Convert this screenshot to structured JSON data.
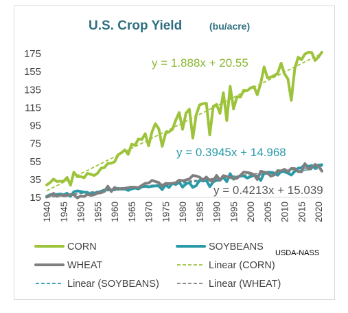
{
  "chart_data": {
    "type": "line",
    "title": "U.S. Crop Yield",
    "subtitle": "(bu/acre)",
    "ylim": [
      15,
      185
    ],
    "yticks": [
      15,
      35,
      55,
      75,
      95,
      115,
      135,
      155,
      175
    ],
    "xticks": [
      1940,
      1945,
      1950,
      1955,
      1960,
      1965,
      1970,
      1975,
      1980,
      1985,
      1990,
      1995,
      2000,
      2005,
      2010,
      2015,
      2020
    ],
    "x": [
      1940,
      1941,
      1942,
      1943,
      1944,
      1945,
      1946,
      1947,
      1948,
      1949,
      1950,
      1951,
      1952,
      1953,
      1954,
      1955,
      1956,
      1957,
      1958,
      1959,
      1960,
      1961,
      1962,
      1963,
      1964,
      1965,
      1966,
      1967,
      1968,
      1969,
      1970,
      1971,
      1972,
      1973,
      1974,
      1975,
      1976,
      1977,
      1978,
      1979,
      1980,
      1981,
      1982,
      1983,
      1984,
      1985,
      1986,
      1987,
      1988,
      1989,
      1990,
      1991,
      1992,
      1993,
      1994,
      1995,
      1996,
      1997,
      1998,
      1999,
      2000,
      2001,
      2002,
      2003,
      2004,
      2005,
      2006,
      2007,
      2008,
      2009,
      2010,
      2011,
      2012,
      2013,
      2014,
      2015,
      2016,
      2017,
      2018,
      2019,
      2020,
      2021
    ],
    "series": [
      {
        "name": "CORN",
        "color": "#9dc33b",
        "values": [
          28.9,
          31.5,
          35.4,
          32.8,
          33.0,
          33.1,
          37.2,
          28.6,
          43.0,
          38.2,
          38.2,
          36.9,
          41.8,
          40.7,
          39.4,
          42.0,
          47.4,
          48.3,
          52.8,
          53.1,
          54.7,
          62.4,
          64.7,
          67.9,
          62.9,
          74.1,
          73.1,
          80.1,
          79.5,
          85.9,
          72.4,
          88.1,
          97.0,
          91.3,
          71.9,
          86.4,
          88.0,
          90.8,
          101.0,
          109.5,
          91.0,
          108.9,
          113.2,
          81.1,
          106.7,
          118.0,
          119.4,
          119.8,
          84.6,
          116.3,
          118.5,
          108.6,
          131.5,
          100.7,
          138.6,
          113.5,
          127.1,
          126.7,
          134.4,
          133.8,
          136.9,
          138.2,
          129.3,
          142.2,
          160.3,
          147.9,
          149.1,
          150.7,
          153.3,
          164.4,
          152.6,
          146.8,
          123.1,
          158.1,
          171.0,
          168.4,
          174.6,
          176.6,
          176.4,
          167.5,
          171.4,
          176.7
        ]
      },
      {
        "name": "SOYBEANS",
        "color": "#2a9aa8",
        "values": [
          16.2,
          18.0,
          18.7,
          18.3,
          18.8,
          18.0,
          19.6,
          16.3,
          21.3,
          22.3,
          21.7,
          20.8,
          20.7,
          18.2,
          20.0,
          20.1,
          21.8,
          23.2,
          24.2,
          23.5,
          23.5,
          25.1,
          24.2,
          24.4,
          22.8,
          24.5,
          25.4,
          24.5,
          26.7,
          27.4,
          26.7,
          27.5,
          27.8,
          27.8,
          23.7,
          28.9,
          26.1,
          30.6,
          29.4,
          32.1,
          26.5,
          30.1,
          31.5,
          26.2,
          28.1,
          34.1,
          33.3,
          33.9,
          27.0,
          32.3,
          34.1,
          34.2,
          37.6,
          32.6,
          41.4,
          35.3,
          37.6,
          38.9,
          38.9,
          36.6,
          38.1,
          39.6,
          38.0,
          33.9,
          42.2,
          43.0,
          42.9,
          41.7,
          39.7,
          44.0,
          43.5,
          42.0,
          40.0,
          44.0,
          47.5,
          48.0,
          51.9,
          49.3,
          50.6,
          47.4,
          51.0,
          51.4
        ]
      },
      {
        "name": "WHEAT",
        "color": "#7f7f7f",
        "values": [
          15.3,
          17.0,
          19.5,
          16.4,
          17.7,
          17.0,
          17.2,
          18.2,
          17.9,
          14.5,
          16.5,
          16.0,
          18.4,
          17.3,
          18.1,
          19.8,
          20.2,
          21.8,
          27.5,
          21.6,
          26.1,
          23.9,
          25.0,
          25.2,
          25.8,
          26.5,
          26.3,
          25.8,
          28.4,
          30.6,
          31.0,
          33.9,
          32.7,
          31.6,
          27.3,
          30.6,
          30.3,
          30.7,
          31.4,
          34.2,
          33.5,
          34.5,
          35.5,
          39.4,
          38.8,
          37.5,
          34.4,
          37.7,
          34.1,
          32.7,
          39.5,
          34.3,
          39.3,
          38.2,
          37.6,
          35.8,
          36.3,
          39.5,
          43.2,
          42.7,
          42.0,
          40.2,
          35.0,
          44.2,
          43.2,
          42.0,
          38.6,
          40.2,
          44.9,
          44.5,
          46.3,
          43.7,
          47.2,
          47.1,
          43.7,
          43.6,
          52.7,
          46.4,
          47.9,
          51.7,
          49.7,
          44.3
        ]
      }
    ],
    "trendlines": [
      {
        "name": "Linear (CORN)",
        "color": "#9dc33b",
        "slope": 1.888,
        "intercept": 20.55,
        "label": "y = 1.888x + 20.55",
        "label_color": "#8ab832"
      },
      {
        "name": "Linear (SOYBEANS)",
        "color": "#2a9aa8",
        "slope": 0.3945,
        "intercept": 14.968,
        "label": "y = 0.3945x + 14.968",
        "label_color": "#2a9aa8"
      },
      {
        "name": "Linear (WHEAT)",
        "color": "#7f7f7f",
        "slope": 0.4213,
        "intercept": 15.039,
        "label": "y = 0.4213x + 15.039",
        "label_color": "#595959"
      }
    ],
    "legend": [
      {
        "label": "CORN",
        "style": "solid",
        "color": "#9dc33b"
      },
      {
        "label": "SOYBEANS",
        "style": "solid",
        "color": "#2a9aa8"
      },
      {
        "label": "WHEAT",
        "style": "solid",
        "color": "#7f7f7f"
      },
      {
        "label": "Linear (CORN)",
        "style": "dashed",
        "color": "#9dc33b"
      },
      {
        "label": "Linear (SOYBEANS)",
        "style": "dashed",
        "color": "#2a9aa8"
      },
      {
        "label": "Linear (WHEAT)",
        "style": "dashed",
        "color": "#7f7f7f"
      }
    ],
    "legend_position": "bottom",
    "grid": false,
    "source": "USDA-NASS"
  }
}
